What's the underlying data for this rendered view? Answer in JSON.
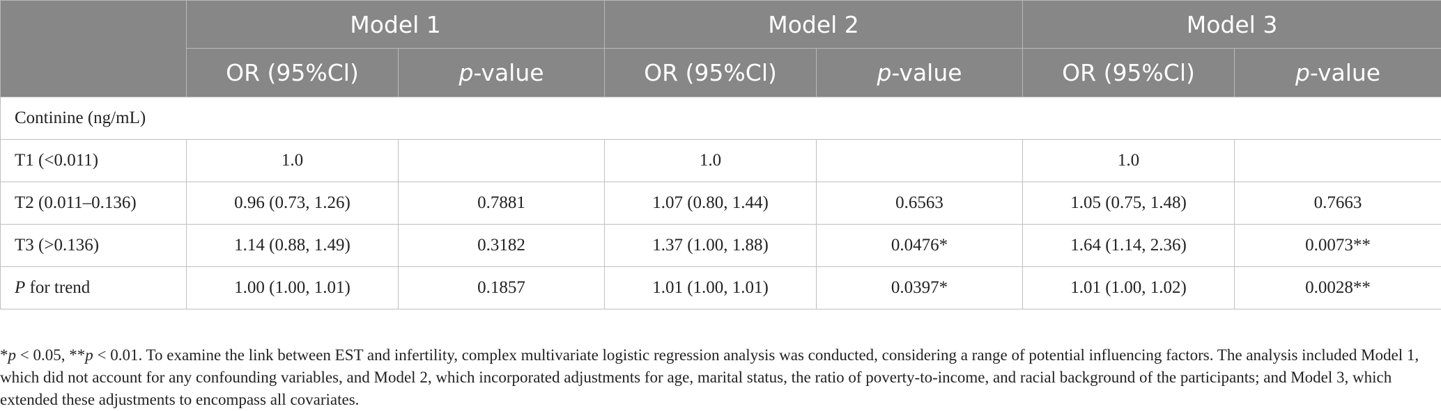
{
  "header": {
    "models": [
      "Model 1",
      "Model 2",
      "Model 3"
    ],
    "or_label": "OR (95%Cl)",
    "p_italic": "p",
    "p_suffix": "-value"
  },
  "section_label": "Continine (ng/mL)",
  "rows": [
    {
      "label": "T1 (<0.011)",
      "label_italic": "",
      "cells": [
        "1.0",
        "",
        "1.0",
        "",
        "1.0",
        ""
      ]
    },
    {
      "label": "T2 (0.011–0.136)",
      "label_italic": "",
      "cells": [
        "0.96 (0.73, 1.26)",
        "0.7881",
        "1.07 (0.80, 1.44)",
        "0.6563",
        "1.05 (0.75, 1.48)",
        "0.7663"
      ]
    },
    {
      "label": "T3 (>0.136)",
      "label_italic": "",
      "cells": [
        "1.14 (0.88, 1.49)",
        "0.3182",
        "1.37 (1.00, 1.88)",
        "0.0476*",
        "1.64 (1.14, 2.36)",
        "0.0073**"
      ]
    },
    {
      "label": " for trend",
      "label_italic": "P",
      "cells": [
        "1.00 (1.00, 1.01)",
        "0.1857",
        "1.01 (1.00, 1.01)",
        "0.0397*",
        "1.01 (1.00, 1.02)",
        "0.0028**"
      ]
    }
  ],
  "footnote": {
    "sig1_prefix": "*",
    "sig1_p": "p",
    "sig1_text": " < 0.05, **",
    "sig2_p": "p",
    "sig2_text": " < 0.01.",
    "body": " To examine the link between EST and infertility, complex multivariate logistic regression analysis was conducted, considering a range of potential influencing factors. The analysis included Model 1, which did not account for any confounding variables, and Model 2, which incorporated adjustments for age, marital status, the ratio of poverty-to-income, and racial background of the participants; and Model 3, which extended these adjustments to encompass all covariates."
  }
}
